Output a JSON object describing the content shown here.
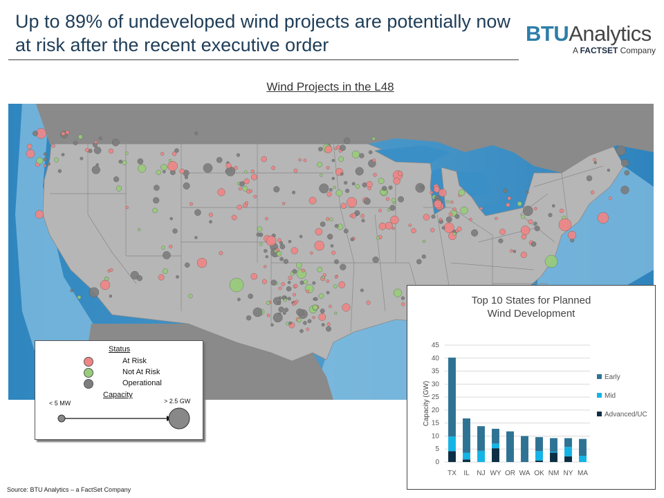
{
  "header": {
    "title": "Up to 89% of undeveloped wind projects are potentially now at risk after the recent executive order",
    "logo_main_a": "BTU",
    "logo_main_b": "Analytics",
    "logo_sub_a": "A ",
    "logo_sub_b": "FACTSET",
    "logo_sub_c": " Company"
  },
  "map": {
    "title": "Wind Projects in the L48",
    "colors": {
      "at_risk": "#f08585",
      "not_at_risk": "#98cc7a",
      "operational": "#7d7d7d",
      "land": "#b6b6b6",
      "water_deep": "#2d86be",
      "water_shallow": "#8fc6e6"
    }
  },
  "legend": {
    "status_heading": "Status",
    "at_risk": "At Risk",
    "not_at_risk": "Not At Risk",
    "operational": "Operational",
    "capacity_heading": "Capacity",
    "small_label": "< 5 MW",
    "large_label": "> 2.5 GW"
  },
  "chart_data": {
    "type": "bar",
    "stacked": true,
    "title": "Top 10 States for Planned Wind Development",
    "xlabel": "",
    "ylabel": "Capacity (GW)",
    "ylim": [
      0,
      45
    ],
    "yticks": [
      0,
      5,
      10,
      15,
      20,
      25,
      30,
      35,
      40,
      45
    ],
    "grid": true,
    "legend_position": "right",
    "categories": [
      "TX",
      "IL",
      "NJ",
      "WY",
      "OR",
      "WA",
      "OK",
      "NM",
      "NY",
      "MA"
    ],
    "series": [
      {
        "name": "Advanced/UC",
        "color": "#0d2f45",
        "values": [
          4.2,
          1.0,
          0,
          5.3,
          0,
          0,
          0.6,
          3.6,
          2.2,
          0
        ]
      },
      {
        "name": "Mid",
        "color": "#14b4e6",
        "values": [
          5.6,
          2.6,
          4.3,
          1.8,
          0,
          0,
          3.6,
          0.4,
          3.6,
          2.4
        ]
      },
      {
        "name": "Early",
        "color": "#2e7394",
        "values": [
          30.4,
          13.2,
          9.5,
          5.7,
          11.8,
          10.0,
          5.4,
          5.2,
          3.4,
          6.5
        ]
      }
    ]
  },
  "footer": {
    "source": "Source: BTU Analytics – a FactSet Company"
  }
}
